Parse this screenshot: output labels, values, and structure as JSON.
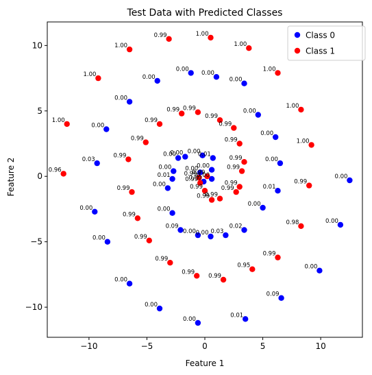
{
  "chart_data": {
    "type": "scatter",
    "title": "Test Data with Predicted Classes",
    "xlabel": "Feature 1",
    "ylabel": "Feature 2",
    "xlim": [
      -13.6,
      13.6
    ],
    "ylim": [
      -12.3,
      11.8
    ],
    "xticks": [
      -10,
      -5,
      0,
      5,
      10
    ],
    "yticks": [
      -10,
      -5,
      0,
      5,
      10
    ],
    "xtick_labels": [
      "−10",
      "−5",
      "0",
      "5",
      "10"
    ],
    "ytick_labels": [
      "−10",
      "−5",
      "0",
      "5",
      "10"
    ],
    "grid": false,
    "legend_position": "top-right",
    "colors": {
      "class0": "#0000ff",
      "class1": "#ff0000"
    },
    "series": [
      {
        "name": "Class 0",
        "points": [
          {
            "x": 0.6,
            "y": -0.2,
            "label": "0.00"
          },
          {
            "x": -1.2,
            "y": 7.9,
            "label": "0.00"
          },
          {
            "x": -4.1,
            "y": 7.3,
            "label": "0.00"
          },
          {
            "x": 1.0,
            "y": 7.6,
            "label": "0.00"
          },
          {
            "x": 3.4,
            "y": 7.1,
            "label": "0.00"
          },
          {
            "x": -6.5,
            "y": 5.7,
            "label": "0.00"
          },
          {
            "x": 4.6,
            "y": 4.7,
            "label": "0.00"
          },
          {
            "x": -8.5,
            "y": 3.6,
            "label": "0.00"
          },
          {
            "x": 6.1,
            "y": 3.0,
            "label": "0.00"
          },
          {
            "x": -9.3,
            "y": 1.0,
            "label": "0.03"
          },
          {
            "x": 6.5,
            "y": 1.0,
            "label": "0.00"
          },
          {
            "x": -2.7,
            "y": 0.4,
            "label": "0.00"
          },
          {
            "x": -2.8,
            "y": -0.2,
            "label": "0.01"
          },
          {
            "x": -3.2,
            "y": -0.9,
            "label": "0.00"
          },
          {
            "x": 6.3,
            "y": -1.1,
            "label": "0.01"
          },
          {
            "x": 12.5,
            "y": -0.3,
            "label": "0.00"
          },
          {
            "x": -9.5,
            "y": -2.7,
            "label": "0.00"
          },
          {
            "x": 5.0,
            "y": -2.4,
            "label": "0.00"
          },
          {
            "x": -2.8,
            "y": -2.8,
            "label": "0.00"
          },
          {
            "x": 11.7,
            "y": -3.7,
            "label": "0.00"
          },
          {
            "x": -2.1,
            "y": -4.1,
            "label": "0.09"
          },
          {
            "x": 3.4,
            "y": -4.1,
            "label": "0.02"
          },
          {
            "x": -0.6,
            "y": -4.5,
            "label": "0.00"
          },
          {
            "x": 0.5,
            "y": -4.6,
            "label": "0.00"
          },
          {
            "x": 1.8,
            "y": -4.5,
            "label": "0.03"
          },
          {
            "x": -8.4,
            "y": -5.0,
            "label": "0.00"
          },
          {
            "x": 9.9,
            "y": -7.2,
            "label": "0.00"
          },
          {
            "x": -6.5,
            "y": -8.2,
            "label": "0.00"
          },
          {
            "x": 6.6,
            "y": -9.3,
            "label": "0.09"
          },
          {
            "x": -3.9,
            "y": -10.1,
            "label": "0.00"
          },
          {
            "x": 3.5,
            "y": -10.9,
            "label": "0.01"
          },
          {
            "x": -0.6,
            "y": -11.2,
            "label": "0.00"
          },
          {
            "x": -0.2,
            "y": 1.6,
            "label": "0.00"
          },
          {
            "x": -1.7,
            "y": 1.5,
            "label": "0.00"
          },
          {
            "x": -2.3,
            "y": 1.4,
            "label": "0.00"
          },
          {
            "x": 0.7,
            "y": 1.4,
            "label": "0.01"
          },
          {
            "x": 0.6,
            "y": 0.5,
            "label": "0.00"
          },
          {
            "x": -0.4,
            "y": 0.3,
            "label": "0.00"
          },
          {
            "x": -0.1,
            "y": -0.4,
            "label": "0.00"
          }
        ]
      },
      {
        "name": "Class 1",
        "points": [
          {
            "x": 0.5,
            "y": 10.6,
            "label": "1.00"
          },
          {
            "x": -3.1,
            "y": 10.5,
            "label": "0.99"
          },
          {
            "x": -6.5,
            "y": 9.7,
            "label": "1.00"
          },
          {
            "x": 3.8,
            "y": 9.8,
            "label": "1.00"
          },
          {
            "x": -9.2,
            "y": 7.5,
            "label": "1.00"
          },
          {
            "x": 6.3,
            "y": 7.9,
            "label": "1.00"
          },
          {
            "x": 8.3,
            "y": 5.1,
            "label": "1.00"
          },
          {
            "x": -2.0,
            "y": 4.8,
            "label": "0.99"
          },
          {
            "x": -0.6,
            "y": 4.9,
            "label": "0.99"
          },
          {
            "x": 1.3,
            "y": 4.3,
            "label": "0.99"
          },
          {
            "x": -11.9,
            "y": 4.0,
            "label": "1.00"
          },
          {
            "x": -3.9,
            "y": 4.0,
            "label": "0.99"
          },
          {
            "x": 2.5,
            "y": 3.7,
            "label": "0.99"
          },
          {
            "x": -5.1,
            "y": 2.6,
            "label": "0.99"
          },
          {
            "x": 3.0,
            "y": 2.5,
            "label": "0.99"
          },
          {
            "x": 9.2,
            "y": 2.4,
            "label": "1.00"
          },
          {
            "x": -6.6,
            "y": 1.3,
            "label": "0.99"
          },
          {
            "x": 3.4,
            "y": 1.1,
            "label": "0.99"
          },
          {
            "x": -12.2,
            "y": 0.2,
            "label": "0.96"
          },
          {
            "x": 3.2,
            "y": 0.4,
            "label": "0.99"
          },
          {
            "x": -0.4,
            "y": -0.5,
            "label": "0.99"
          },
          {
            "x": 9.0,
            "y": -0.7,
            "label": "0.99"
          },
          {
            "x": 3.0,
            "y": -0.8,
            "label": "0.99"
          },
          {
            "x": -6.3,
            "y": -1.2,
            "label": "0.99"
          },
          {
            "x": 2.7,
            "y": -1.2,
            "label": "0.99"
          },
          {
            "x": 0.0,
            "y": -1.1,
            "label": "0.99"
          },
          {
            "x": 1.3,
            "y": -1.7,
            "label": "0.99"
          },
          {
            "x": 0.6,
            "y": -1.8,
            "label": "0.99"
          },
          {
            "x": -5.8,
            "y": -3.2,
            "label": "0.99"
          },
          {
            "x": 8.3,
            "y": -3.8,
            "label": "0.98"
          },
          {
            "x": -4.8,
            "y": -4.9,
            "label": "0.99"
          },
          {
            "x": 6.3,
            "y": -6.2,
            "label": "0.99"
          },
          {
            "x": -3.0,
            "y": -6.6,
            "label": "0.99"
          },
          {
            "x": 4.1,
            "y": -7.1,
            "label": "0.95"
          },
          {
            "x": -0.7,
            "y": -7.6,
            "label": "0.99"
          },
          {
            "x": 1.6,
            "y": -7.9,
            "label": "0.99"
          },
          {
            "x": -0.5,
            "y": -0.1,
            "label": "0.99"
          },
          {
            "x": 0.2,
            "y": 0.0,
            "label": "0.99"
          }
        ]
      }
    ]
  }
}
